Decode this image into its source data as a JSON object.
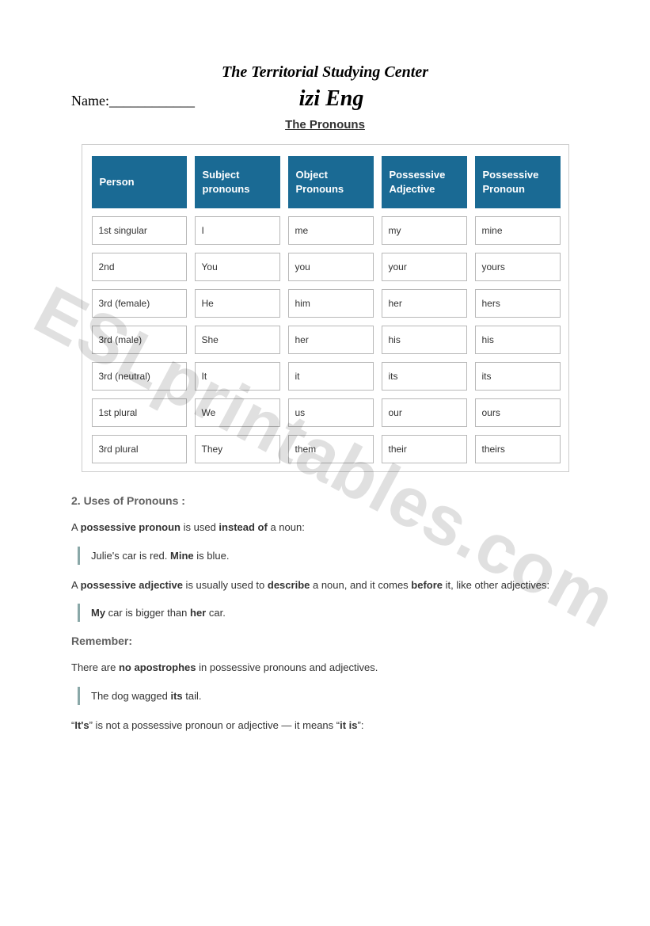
{
  "header": {
    "center_name": "The Territorial Studying Center",
    "name_label": "Name: ",
    "name_blank": "____________",
    "brand": "izi Eng",
    "title": "The Pronouns"
  },
  "table": {
    "header_bg": "#1a6a94",
    "header_fg": "#ffffff",
    "cell_border": "#b8b8b8",
    "columns": [
      "Person",
      "Subject pronouns",
      "Object Pronouns",
      "Possessive Adjective",
      "Possessive Pronoun"
    ],
    "rows": [
      [
        "1st singular",
        "I",
        "me",
        "my",
        "mine"
      ],
      [
        "2nd",
        "You",
        "you",
        "your",
        "yours"
      ],
      [
        "3rd (female)",
        "He",
        "him",
        "her",
        "hers"
      ],
      [
        "3rd (male)",
        "She",
        "her",
        "his",
        "his"
      ],
      [
        "3rd (neutral)",
        "It",
        "it",
        "its",
        "its"
      ],
      [
        "1st plural",
        "We",
        "us",
        "our",
        "ours"
      ],
      [
        "3rd plural",
        "They",
        "them",
        "their",
        "theirs"
      ]
    ]
  },
  "content": {
    "uses_heading": "2. Uses of Pronouns :",
    "p1_a": "A ",
    "p1_b": "possessive pronoun",
    "p1_c": " is used ",
    "p1_d": "instead of",
    "p1_e": " a noun:",
    "ex1_a": "Julie's car is red. ",
    "ex1_b": "Mine",
    "ex1_c": " is blue.",
    "p2_a": "A ",
    "p2_b": "possessive adjective",
    "p2_c": " is usually used to ",
    "p2_d": "describe",
    "p2_e": " a noun, and it comes ",
    "p2_f": "before",
    "p2_g": " it, like other adjectives:",
    "ex2_a": "My",
    "ex2_b": " car is bigger than ",
    "ex2_c": "her",
    "ex2_d": " car.",
    "remember": "Remember:",
    "p3_a": "There are ",
    "p3_b": "no apostrophes",
    "p3_c": " in possessive pronouns and adjectives.",
    "ex3_a": "The dog wagged ",
    "ex3_b": "its",
    "ex3_c": " tail.",
    "p4_a": "“",
    "p4_b": "It's",
    "p4_c": "” is not a possessive pronoun or adjective — it means “",
    "p4_d": "it is",
    "p4_e": "”:"
  },
  "watermark": "ESLprintables.com"
}
